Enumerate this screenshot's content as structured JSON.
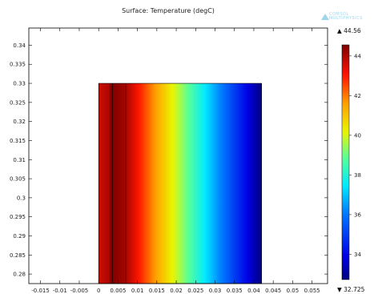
{
  "chart_data": {
    "type": "heatmap",
    "title": "Surface: Temperature (degC)",
    "xlim": [
      -0.018,
      0.059
    ],
    "ylim": [
      0.2775,
      0.3445
    ],
    "xticks": [
      -0.015,
      -0.01,
      -0.005,
      0,
      0.005,
      0.01,
      0.015,
      0.02,
      0.025,
      0.03,
      0.035,
      0.04,
      0.045,
      0.05,
      0.055
    ],
    "yticks": [
      0.28,
      0.285,
      0.29,
      0.295,
      0.3,
      0.305,
      0.31,
      0.315,
      0.32,
      0.325,
      0.33,
      0.335,
      0.34
    ],
    "domain": {
      "x": [
        0,
        0.042
      ],
      "y": [
        0.2775,
        0.33
      ]
    },
    "temperature_profile_x": [
      0,
      0.003,
      0.0035,
      0.007,
      0.042
    ],
    "temperature_profile_t": [
      43.6,
      44.1,
      44.56,
      44.1,
      32.725
    ],
    "colorbar": {
      "min": 32.725,
      "max": 44.56,
      "ticks": [
        34,
        36,
        38,
        40,
        42,
        44
      ],
      "max_label": "▲ 44.56",
      "min_label": "▼ 32.725",
      "colormap": "rainbow"
    }
  },
  "logo": {
    "text1": "COMSOL",
    "text2": "MULTIPHYSICS"
  }
}
